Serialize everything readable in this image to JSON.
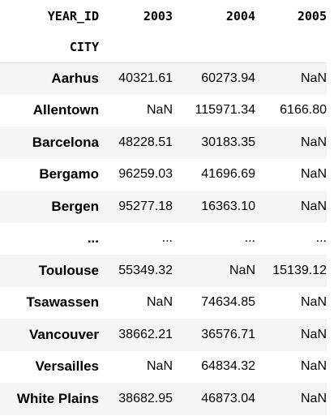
{
  "table": {
    "columns_name": "YEAR_ID",
    "columns": [
      "2003",
      "2004",
      "2005"
    ],
    "index_name": "CITY",
    "rows": [
      {
        "city": "Aarhus",
        "values": [
          "40321.61",
          "60273.94",
          "NaN"
        ]
      },
      {
        "city": "Allentown",
        "values": [
          "NaN",
          "115971.34",
          "6166.80"
        ]
      },
      {
        "city": "Barcelona",
        "values": [
          "48228.51",
          "30183.35",
          "NaN"
        ]
      },
      {
        "city": "Bergamo",
        "values": [
          "96259.03",
          "41696.69",
          "NaN"
        ]
      },
      {
        "city": "Bergen",
        "values": [
          "95277.18",
          "16363.10",
          "NaN"
        ]
      },
      {
        "city": "...",
        "values": [
          "...",
          "...",
          "..."
        ]
      },
      {
        "city": "Toulouse",
        "values": [
          "55349.32",
          "NaN",
          "15139.12"
        ]
      },
      {
        "city": "Tsawassen",
        "values": [
          "NaN",
          "74634.85",
          "NaN"
        ]
      },
      {
        "city": "Vancouver",
        "values": [
          "38662.21",
          "36576.71",
          "NaN"
        ]
      },
      {
        "city": "Versailles",
        "values": [
          "NaN",
          "64834.32",
          "NaN"
        ]
      },
      {
        "city": "White Plains",
        "values": [
          "38682.95",
          "46873.04",
          "NaN"
        ]
      }
    ]
  }
}
